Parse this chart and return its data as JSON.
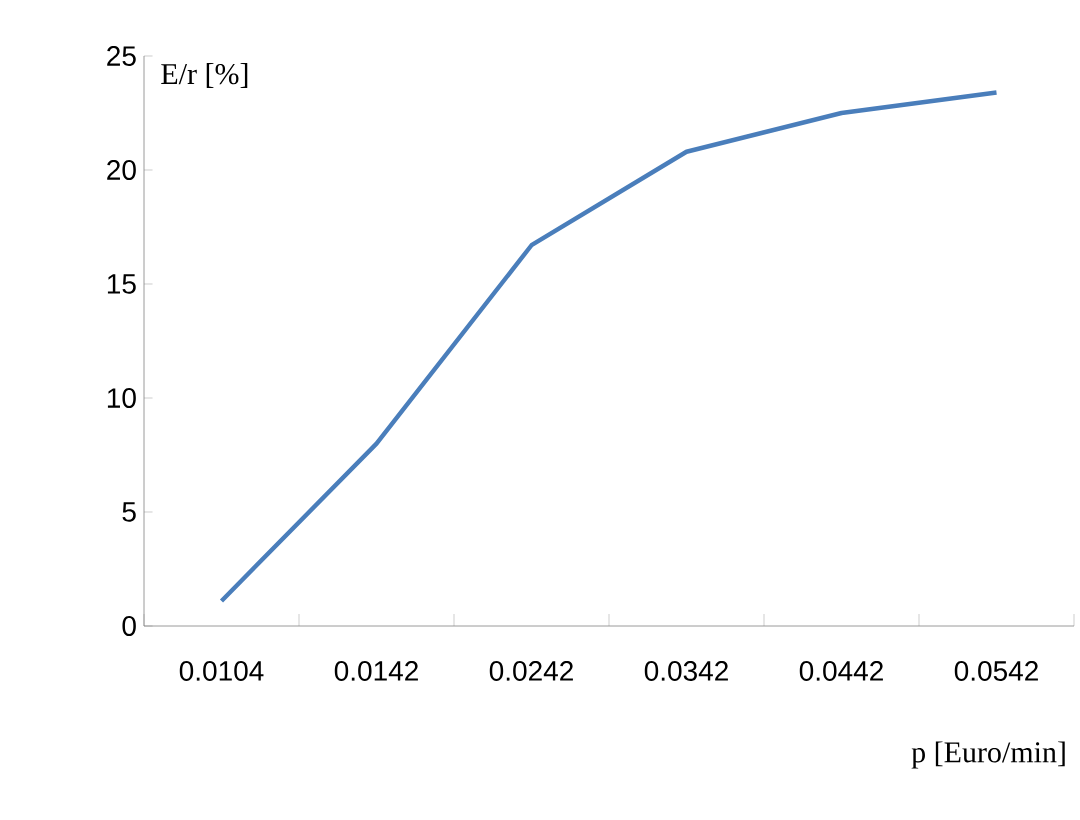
{
  "chart_data": {
    "type": "line",
    "xlabel": "p [Euro/min]",
    "ylabel": "E/r [%]",
    "categories": [
      "0.0104",
      "0.0142",
      "0.0242",
      "0.0342",
      "0.0442",
      "0.0542"
    ],
    "series": [
      {
        "color": "#4a7ebb",
        "values": [
          1.1,
          8.0,
          16.7,
          20.8,
          22.5,
          23.4
        ]
      }
    ],
    "ylim": [
      0,
      25
    ],
    "yticks": [
      0,
      5,
      10,
      15,
      20,
      25
    ],
    "grid": false,
    "legend": false,
    "marker": "none",
    "line_style": "solid"
  }
}
